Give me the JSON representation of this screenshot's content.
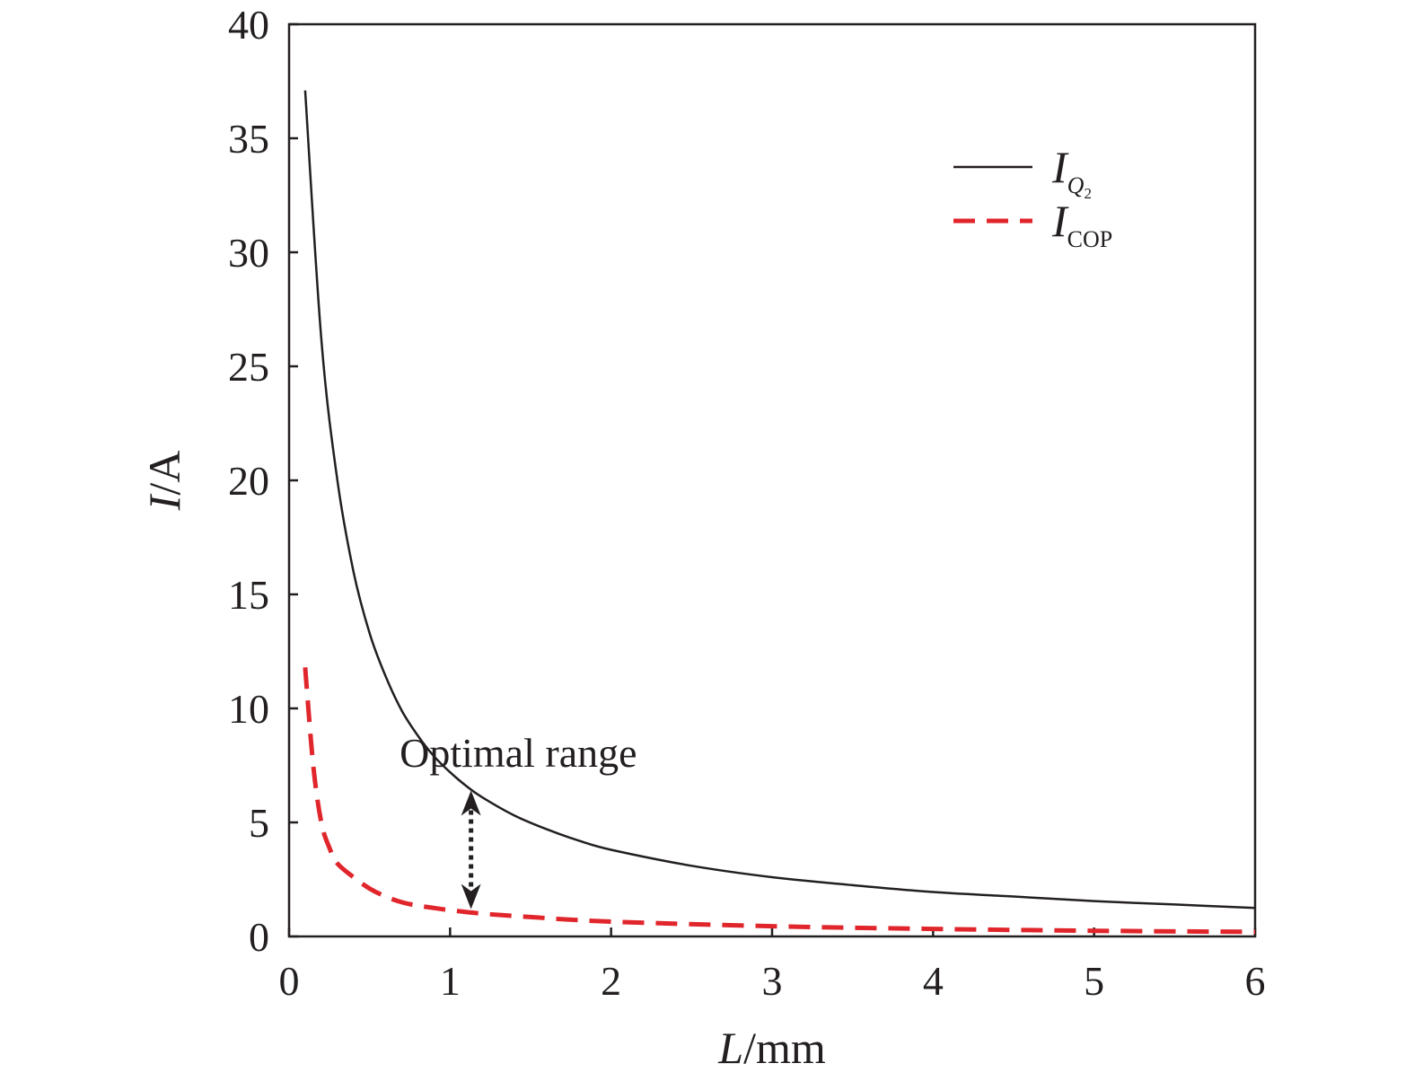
{
  "chart_data": {
    "type": "line",
    "title": "",
    "xlabel": {
      "italic": "L",
      "rest": "/mm"
    },
    "ylabel": {
      "italic": "I",
      "rest": "/A"
    },
    "xlim": [
      0,
      6
    ],
    "ylim": [
      0,
      40
    ],
    "xticks": [
      "0",
      "1",
      "2",
      "3",
      "4",
      "5",
      "6"
    ],
    "yticks": [
      "0",
      "5",
      "10",
      "15",
      "20",
      "25",
      "30",
      "35",
      "40"
    ],
    "grid": false,
    "legend_position": "top-right",
    "series": [
      {
        "name": "I_Q2",
        "legend": {
          "main": "I",
          "sub": "Q",
          "subsub": "2"
        },
        "color": "#231f20",
        "style": "solid",
        "x": [
          0.1,
          0.2,
          0.3,
          0.4,
          0.5,
          0.6,
          0.7,
          0.8,
          0.9,
          1.0,
          1.1,
          1.2,
          1.4,
          1.6,
          1.8,
          2.0,
          2.5,
          3.0,
          3.5,
          4.0,
          4.5,
          5.0,
          5.5,
          6.0
        ],
        "y": [
          37.1,
          26.2,
          20.0,
          16.0,
          13.3,
          11.4,
          9.9,
          8.8,
          7.9,
          7.2,
          6.6,
          6.1,
          5.3,
          4.7,
          4.2,
          3.8,
          3.1,
          2.6,
          2.25,
          1.95,
          1.75,
          1.55,
          1.4,
          1.25
        ]
      },
      {
        "name": "I_COP",
        "legend": {
          "main": "I",
          "sub": "COP"
        },
        "color": "#e0252b",
        "style": "dashed",
        "x": [
          0.1,
          0.15,
          0.2,
          0.25,
          0.3,
          0.4,
          0.5,
          0.6,
          0.7,
          0.8,
          0.9,
          1.0,
          1.2,
          1.5,
          2.0,
          3.0,
          4.0,
          5.0,
          6.0
        ],
        "y": [
          11.8,
          7.5,
          5.0,
          3.9,
          3.2,
          2.6,
          2.1,
          1.75,
          1.5,
          1.35,
          1.25,
          1.15,
          1.0,
          0.85,
          0.65,
          0.45,
          0.33,
          0.25,
          0.2
        ]
      }
    ],
    "annotations": [
      {
        "text": "Optimal range",
        "x": 1.3,
        "y": 8.0
      }
    ],
    "range_arrow": {
      "x": 1.13,
      "y_top": 6.4,
      "y_bottom": 1.2
    }
  }
}
